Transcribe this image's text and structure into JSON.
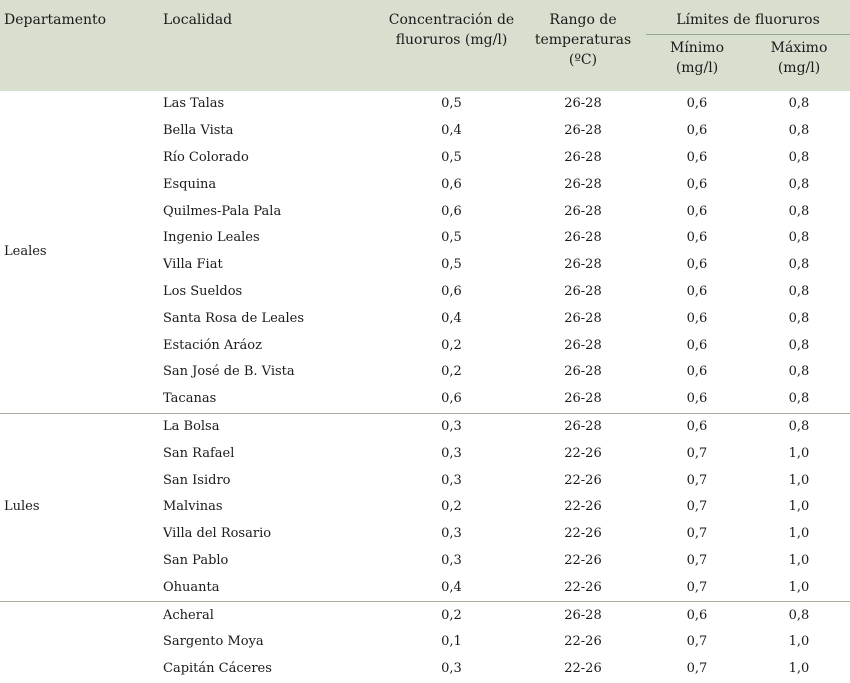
{
  "headers": {
    "departamento": "Departamento",
    "localidad": "Localidad",
    "concentracion": "Concentración de fluoruros (mg/l)",
    "rango": "Rango de temperaturas (ºC)",
    "limites": "Límites de fluoruros",
    "minimo": "Mínimo (mg/l)",
    "maximo": "Máximo (mg/l)"
  },
  "groups": [
    {
      "departamento": "Leales",
      "rows": [
        {
          "localidad": "Las Talas",
          "concentracion": "0,5",
          "rango": "26-28",
          "minimo": "0,6",
          "maximo": "0,8"
        },
        {
          "localidad": "Bella Vista",
          "concentracion": "0,4",
          "rango": "26-28",
          "minimo": "0,6",
          "maximo": "0,8"
        },
        {
          "localidad": "Río Colorado",
          "concentracion": "0,5",
          "rango": "26-28",
          "minimo": "0,6",
          "maximo": "0,8"
        },
        {
          "localidad": "Esquina",
          "concentracion": "0,6",
          "rango": "26-28",
          "minimo": "0,6",
          "maximo": "0,8"
        },
        {
          "localidad": "Quilmes-Pala Pala",
          "concentracion": "0,6",
          "rango": "26-28",
          "minimo": "0,6",
          "maximo": "0,8"
        },
        {
          "localidad": "Ingenio Leales",
          "concentracion": "0,5",
          "rango": "26-28",
          "minimo": "0,6",
          "maximo": "0,8"
        },
        {
          "localidad": "Villa Fiat",
          "concentracion": "0,5",
          "rango": "26-28",
          "minimo": "0,6",
          "maximo": "0,8"
        },
        {
          "localidad": "Los Sueldos",
          "concentracion": "0,6",
          "rango": "26-28",
          "minimo": "0,6",
          "maximo": "0,8"
        },
        {
          "localidad": "Santa Rosa de Leales",
          "concentracion": "0,4",
          "rango": "26-28",
          "minimo": "0,6",
          "maximo": "0,8"
        },
        {
          "localidad": "Estación Aráoz",
          "concentracion": "0,2",
          "rango": "26-28",
          "minimo": "0,6",
          "maximo": "0,8"
        },
        {
          "localidad": "San José de B. Vista",
          "concentracion": "0,2",
          "rango": "26-28",
          "minimo": "0,6",
          "maximo": "0,8"
        },
        {
          "localidad": "Tacanas",
          "concentracion": "0,6",
          "rango": "26-28",
          "minimo": "0,6",
          "maximo": "0,8"
        }
      ]
    },
    {
      "departamento": "Lules",
      "rows": [
        {
          "localidad": "La Bolsa",
          "concentracion": "0,3",
          "rango": "26-28",
          "minimo": "0,6",
          "maximo": "0,8"
        },
        {
          "localidad": "San Rafael",
          "concentracion": "0,3",
          "rango": "22-26",
          "minimo": "0,7",
          "maximo": "1,0"
        },
        {
          "localidad": "San Isidro",
          "concentracion": "0,3",
          "rango": "22-26",
          "minimo": "0,7",
          "maximo": "1,0"
        },
        {
          "localidad": "Malvinas",
          "concentracion": "0,2",
          "rango": "22-26",
          "minimo": "0,7",
          "maximo": "1,0"
        },
        {
          "localidad": "Villa del Rosario",
          "concentracion": "0,3",
          "rango": "22-26",
          "minimo": "0,7",
          "maximo": "1,0"
        },
        {
          "localidad": "San Pablo",
          "concentracion": "0,3",
          "rango": "22-26",
          "minimo": "0,7",
          "maximo": "1,0"
        },
        {
          "localidad": "Ohuanta",
          "concentracion": "0,4",
          "rango": "22-26",
          "minimo": "0,7",
          "maximo": "1,0"
        }
      ]
    },
    {
      "departamento": "",
      "rows": [
        {
          "localidad": "Acheral",
          "concentracion": "0,2",
          "rango": "26-28",
          "minimo": "0,6",
          "maximo": "0,8"
        },
        {
          "localidad": "Sargento Moya",
          "concentracion": "0,1",
          "rango": "22-26",
          "minimo": "0,7",
          "maximo": "1,0"
        },
        {
          "localidad": "Capitán Cáceres",
          "concentracion": "0,3",
          "rango": "22-26",
          "minimo": "0,7",
          "maximo": "1,0"
        }
      ]
    }
  ]
}
